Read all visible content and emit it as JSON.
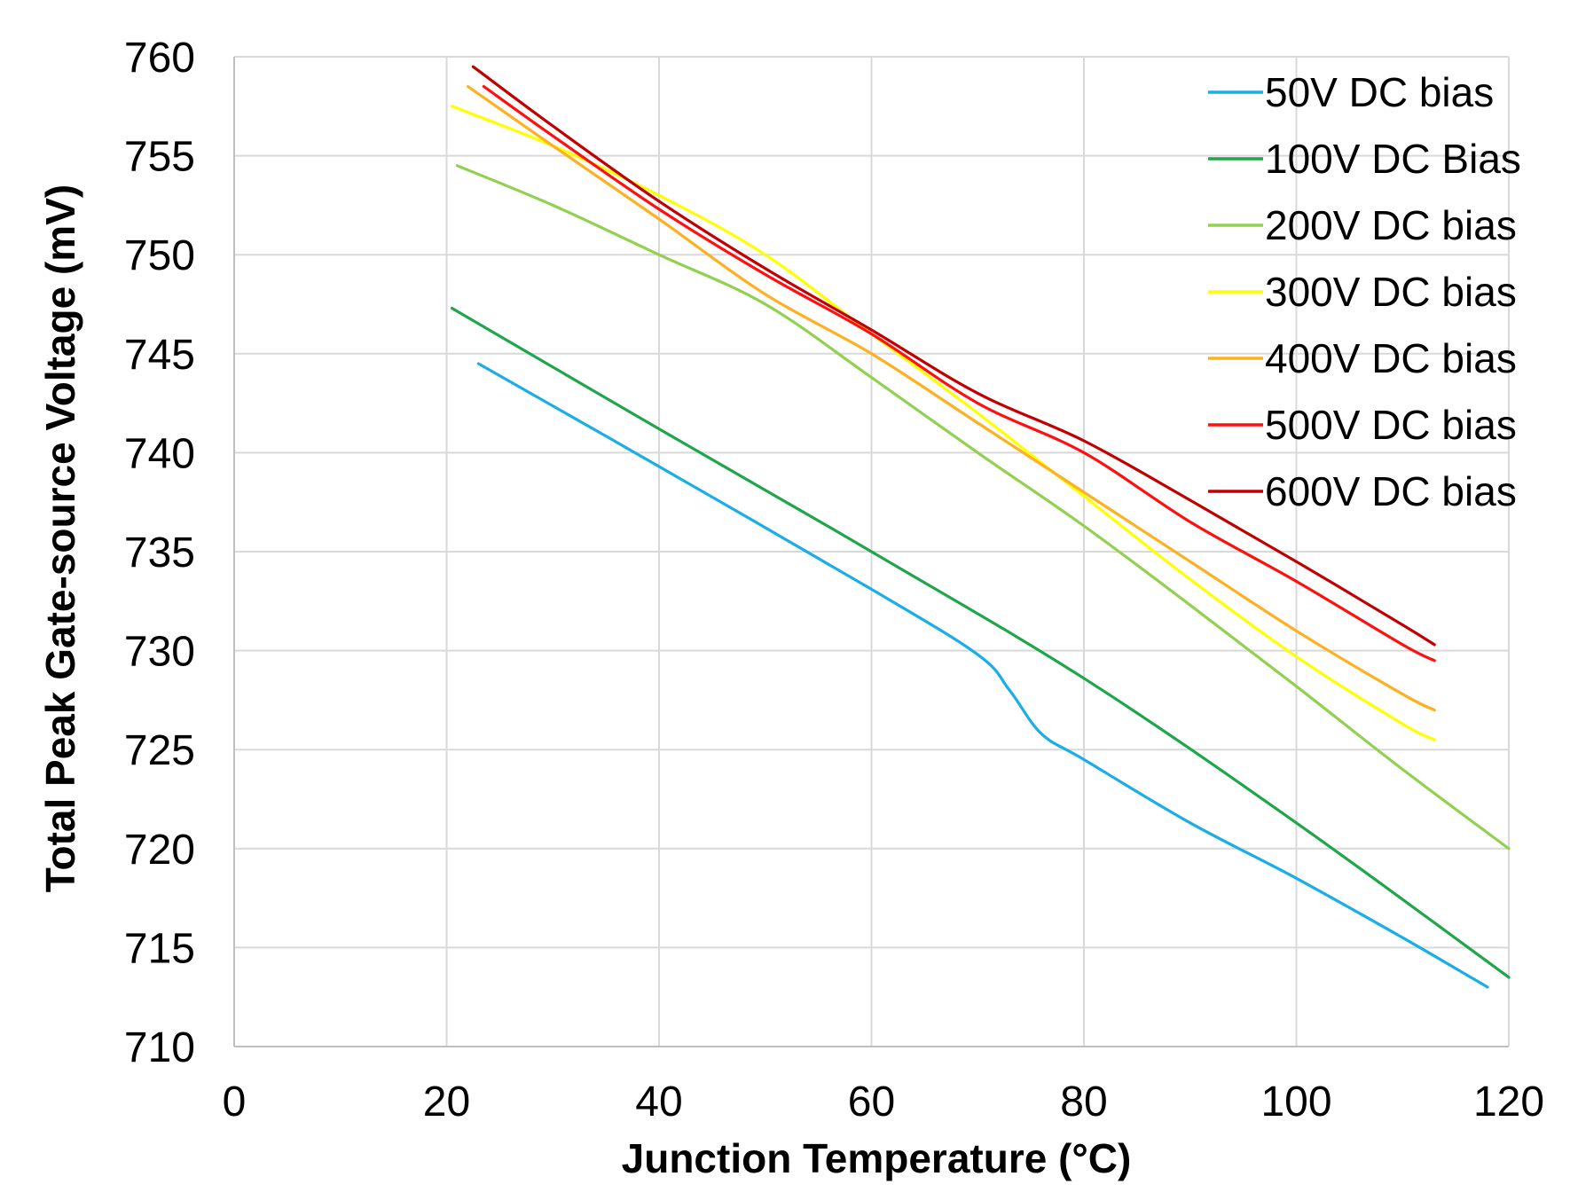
{
  "chart_data": {
    "type": "line",
    "xlabel": "Junction Temperature (°C)",
    "ylabel": "Total Peak Gate-source Voltage (mV)",
    "xlim": [
      0,
      120
    ],
    "ylim": [
      710,
      760
    ],
    "xticks": [
      "0",
      "20",
      "40",
      "60",
      "80",
      "100",
      "120"
    ],
    "yticks": [
      "710",
      "715",
      "720",
      "725",
      "730",
      "735",
      "740",
      "745",
      "750",
      "755",
      "760"
    ],
    "grid": true,
    "legend_position": "top-right",
    "series": [
      {
        "name": "50V DC bias",
        "color": "#1AADE8",
        "x": [
          23,
          40,
          60,
          70,
          73,
          76,
          80,
          90,
          100,
          110,
          118
        ],
        "y": [
          744.5,
          739.3,
          733.1,
          729.8,
          728.0,
          725.8,
          724.5,
          721.3,
          718.5,
          715.5,
          713.0
        ]
      },
      {
        "name": "100V DC Bias",
        "color": "#1FA64B",
        "x": [
          20.5,
          40,
          60,
          80,
          100,
          120
        ],
        "y": [
          747.3,
          741.2,
          735.0,
          728.6,
          721.3,
          713.5
        ]
      },
      {
        "name": "200V DC bias",
        "color": "#92D050",
        "x": [
          21,
          30,
          40,
          50,
          60,
          70,
          80,
          90,
          100,
          110,
          120
        ],
        "y": [
          754.5,
          752.5,
          750.0,
          747.5,
          743.8,
          740.0,
          736.3,
          732.3,
          728.2,
          724.0,
          720.0
        ]
      },
      {
        "name": "300V DC bias",
        "color": "#FFFF00",
        "x": [
          20.5,
          30,
          40,
          50,
          60,
          70,
          80,
          90,
          100,
          110,
          113
        ],
        "y": [
          757.5,
          755.5,
          753.0,
          750.0,
          746.0,
          742.0,
          737.8,
          733.6,
          729.7,
          726.3,
          725.5
        ]
      },
      {
        "name": "400V DC bias",
        "color": "#FFB020",
        "x": [
          22,
          30,
          40,
          50,
          60,
          70,
          80,
          90,
          100,
          110,
          113
        ],
        "y": [
          758.5,
          755.5,
          751.8,
          748.0,
          745.0,
          741.5,
          738.0,
          734.5,
          731.0,
          727.8,
          727.0
        ]
      },
      {
        "name": "500V DC bias",
        "color": "#FF1010",
        "x": [
          23.5,
          30,
          40,
          50,
          60,
          70,
          80,
          90,
          100,
          110,
          113
        ],
        "y": [
          758.5,
          756.0,
          752.3,
          749.0,
          746.0,
          742.5,
          740.0,
          736.5,
          733.5,
          730.3,
          729.5
        ]
      },
      {
        "name": "600V DC bias",
        "color": "#C00000",
        "x": [
          22.5,
          30,
          40,
          50,
          60,
          70,
          80,
          90,
          100,
          110,
          113
        ],
        "y": [
          759.5,
          756.5,
          752.7,
          749.3,
          746.2,
          743.0,
          740.6,
          737.6,
          734.5,
          731.3,
          730.3
        ]
      }
    ]
  }
}
